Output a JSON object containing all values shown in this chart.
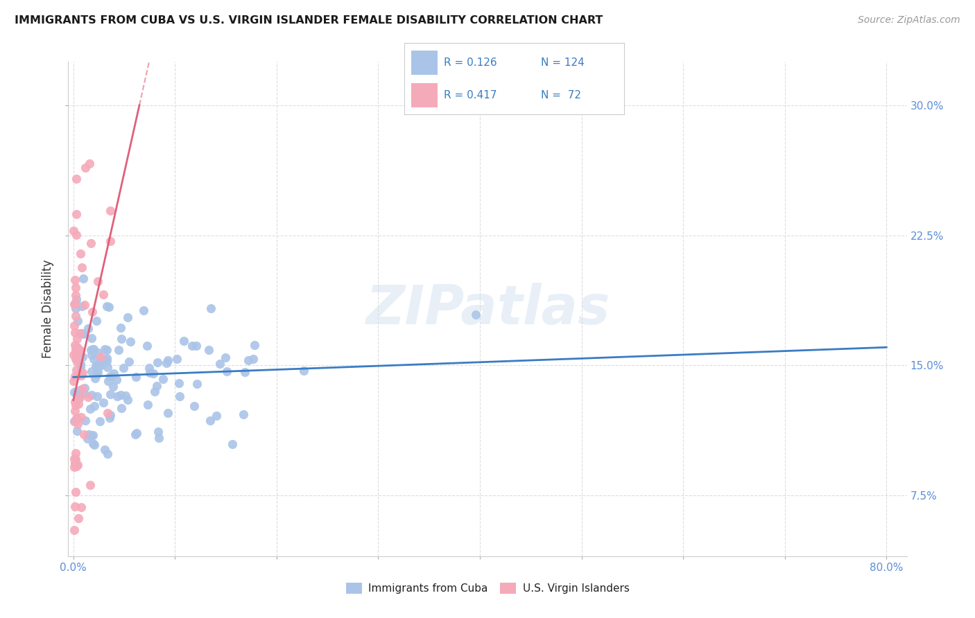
{
  "title": "IMMIGRANTS FROM CUBA VS U.S. VIRGIN ISLANDER FEMALE DISABILITY CORRELATION CHART",
  "source": "Source: ZipAtlas.com",
  "ylabel": "Female Disability",
  "xlim": [
    -0.005,
    0.82
  ],
  "ylim": [
    0.04,
    0.325
  ],
  "xtick_positions": [
    0.0,
    0.1,
    0.2,
    0.3,
    0.4,
    0.5,
    0.6,
    0.7,
    0.8
  ],
  "xticklabels": [
    "0.0%",
    "",
    "",
    "",
    "",
    "",
    "",
    "",
    "80.0%"
  ],
  "ytick_positions": [
    0.075,
    0.15,
    0.225,
    0.3
  ],
  "yticklabels": [
    "7.5%",
    "15.0%",
    "22.5%",
    "30.0%"
  ],
  "watermark": "ZIPatlas",
  "blue_color": "#aac4e8",
  "pink_color": "#f5aaba",
  "line_blue": "#3a7cc4",
  "line_pink": "#e0607a",
  "bg_color": "#ffffff",
  "grid_color": "#dddddd",
  "tick_color": "#5b8ed6",
  "label_color": "#333333",
  "legend_text_color": "#3a7cc4",
  "legend_r1": "R = 0.126",
  "legend_n1": "N = 124",
  "legend_r2": "R = 0.417",
  "legend_n2": "N =  72"
}
